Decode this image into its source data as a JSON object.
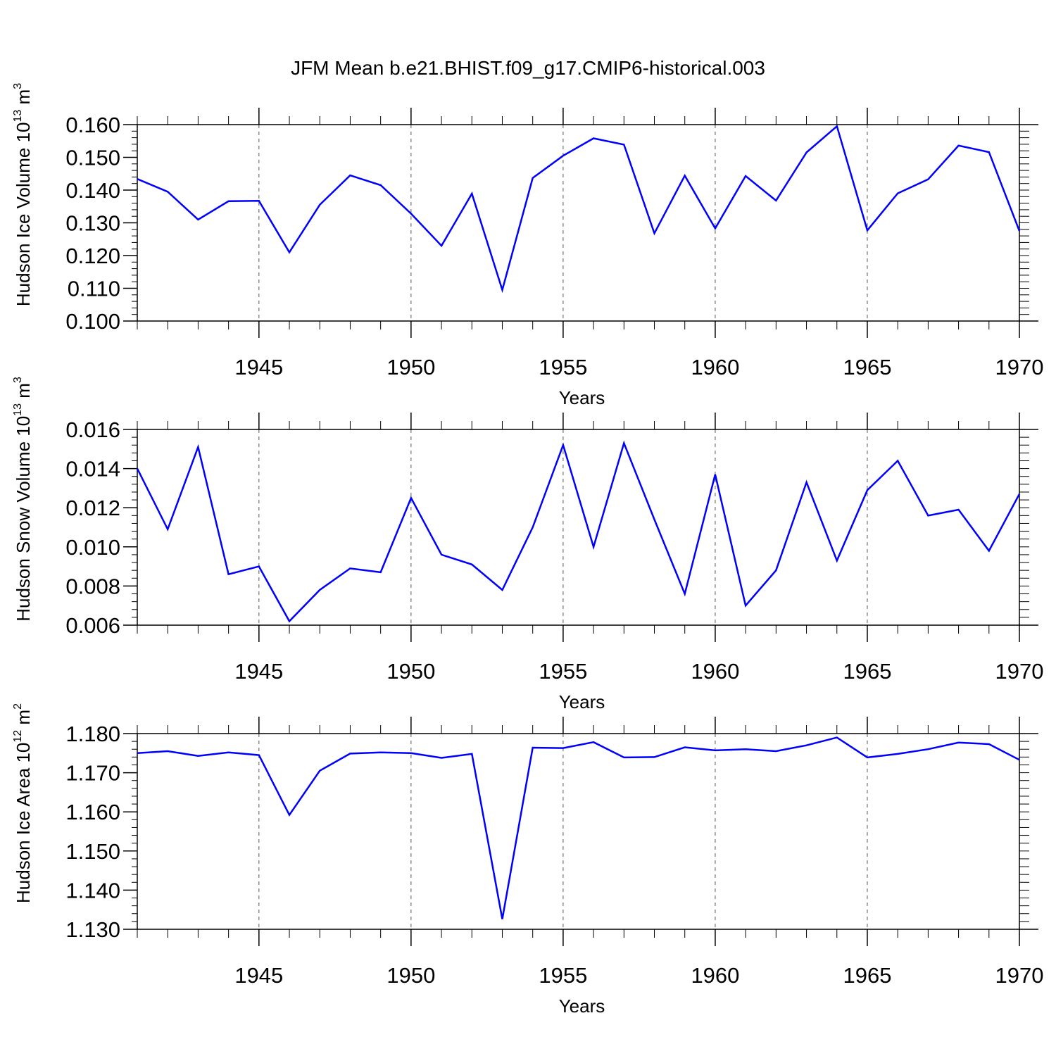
{
  "figure_title": "JFM Mean b.e21.BHIST.f09_g17.CMIP6-historical.003",
  "colors": {
    "line": "#0000ff",
    "axis": "#000000",
    "grid": "#555555"
  },
  "chart_data": [
    {
      "type": "line",
      "name": "ice-volume",
      "ylabel_main": "Hudson Ice Volume 10",
      "ylabel_exp": "13",
      "ylabel_unit": " m",
      "ylabel_unit_exp": "3",
      "xlabel": "Years",
      "xlim": [
        1941,
        1970
      ],
      "ylim": [
        0.1,
        0.16
      ],
      "x_ticks": [
        1945,
        1950,
        1955,
        1960,
        1965,
        1970
      ],
      "y_ticks": [
        "0.100",
        "0.110",
        "0.120",
        "0.130",
        "0.140",
        "0.150",
        "0.160"
      ],
      "x_grid": [
        1945,
        1950,
        1955,
        1960,
        1965
      ],
      "x": [
        1941,
        1942,
        1943,
        1944,
        1945,
        1946,
        1947,
        1948,
        1949,
        1950,
        1951,
        1952,
        1953,
        1954,
        1955,
        1956,
        1957,
        1958,
        1959,
        1960,
        1961,
        1962,
        1963,
        1964,
        1965,
        1966,
        1967,
        1968,
        1969,
        1970
      ],
      "values": [
        0.1434,
        0.1395,
        0.131,
        0.1366,
        0.1367,
        0.121,
        0.1355,
        0.1445,
        0.1415,
        0.1328,
        0.123,
        0.1389,
        0.1095,
        0.1437,
        0.1505,
        0.1558,
        0.1539,
        0.1268,
        0.1444,
        0.1283,
        0.1443,
        0.1368,
        0.1515,
        0.1595,
        0.1277,
        0.139,
        0.1433,
        0.1536,
        0.1516,
        0.1275
      ]
    },
    {
      "type": "line",
      "name": "snow-volume",
      "ylabel_main": "Hudson Snow Volume 10",
      "ylabel_exp": "13",
      "ylabel_unit": " m",
      "ylabel_unit_exp": "3",
      "xlabel": "Years",
      "xlim": [
        1941,
        1970
      ],
      "ylim": [
        0.006,
        0.016
      ],
      "x_ticks": [
        1945,
        1950,
        1955,
        1960,
        1965,
        1970
      ],
      "y_ticks": [
        "0.006",
        "0.008",
        "0.010",
        "0.012",
        "0.014",
        "0.016"
      ],
      "x_grid": [
        1945,
        1950,
        1955,
        1960,
        1965
      ],
      "x": [
        1941,
        1942,
        1943,
        1944,
        1945,
        1946,
        1947,
        1948,
        1949,
        1950,
        1951,
        1952,
        1953,
        1954,
        1955,
        1956,
        1957,
        1958,
        1959,
        1960,
        1961,
        1962,
        1963,
        1964,
        1965,
        1966,
        1967,
        1968,
        1969,
        1970
      ],
      "values": [
        0.014,
        0.0109,
        0.0151,
        0.0086,
        0.009,
        0.0062,
        0.0078,
        0.0089,
        0.0087,
        0.0125,
        0.0096,
        0.0091,
        0.0078,
        0.011,
        0.0152,
        0.01,
        0.0153,
        0.0114,
        0.0076,
        0.0137,
        0.007,
        0.0088,
        0.0133,
        0.0093,
        0.0129,
        0.0144,
        0.0116,
        0.0119,
        0.0098,
        0.0127
      ]
    },
    {
      "type": "line",
      "name": "ice-area",
      "ylabel_main": "Hudson Ice Area 10",
      "ylabel_exp": "12",
      "ylabel_unit": " m",
      "ylabel_unit_exp": "2",
      "xlabel": "Years",
      "xlim": [
        1941,
        1970
      ],
      "ylim": [
        1.13,
        1.18
      ],
      "x_ticks": [
        1945,
        1950,
        1955,
        1960,
        1965,
        1970
      ],
      "y_ticks": [
        "1.130",
        "1.140",
        "1.150",
        "1.160",
        "1.170",
        "1.180"
      ],
      "x_grid": [
        1945,
        1950,
        1955,
        1960,
        1965
      ],
      "x": [
        1941,
        1942,
        1943,
        1944,
        1945,
        1946,
        1947,
        1948,
        1949,
        1950,
        1951,
        1952,
        1953,
        1954,
        1955,
        1956,
        1957,
        1958,
        1959,
        1960,
        1961,
        1962,
        1963,
        1964,
        1965,
        1966,
        1967,
        1968,
        1969,
        1970
      ],
      "values": [
        1.175,
        1.1755,
        1.1743,
        1.1752,
        1.1745,
        1.1592,
        1.1705,
        1.1749,
        1.1752,
        1.175,
        1.1738,
        1.1748,
        1.1326,
        1.1764,
        1.1763,
        1.1778,
        1.1739,
        1.174,
        1.1765,
        1.1757,
        1.176,
        1.1755,
        1.177,
        1.179,
        1.1739,
        1.1748,
        1.176,
        1.1777,
        1.1773,
        1.1733
      ]
    }
  ]
}
